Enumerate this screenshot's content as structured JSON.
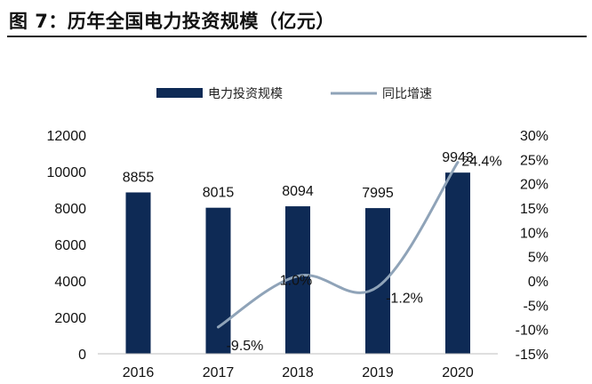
{
  "figure": {
    "title": "图 7：历年全国电力投资规模（亿元）"
  },
  "chart_data": {
    "type": "bar",
    "categories": [
      "2016",
      "2017",
      "2018",
      "2019",
      "2020"
    ],
    "series": [
      {
        "name": "电力投资规模",
        "type": "bar",
        "axis": "left",
        "color": "#0e2a55",
        "values": [
          8855,
          8015,
          8094,
          7995,
          9943
        ],
        "labels": [
          "8855",
          "8015",
          "8094",
          "7995",
          "9943"
        ]
      },
      {
        "name": "同比增速",
        "type": "line",
        "axis": "right",
        "color": "#8fa3b8",
        "values": [
          null,
          -9.5,
          1.0,
          -1.2,
          24.4
        ],
        "labels": [
          "",
          "-9.5%",
          "1.0%",
          "-1.2%",
          "24.4%"
        ]
      }
    ],
    "y_left": {
      "min": 0,
      "max": 12000,
      "ticks": [
        "0",
        "2000",
        "4000",
        "6000",
        "8000",
        "10000",
        "12000"
      ]
    },
    "y_right": {
      "min": -15,
      "max": 30,
      "ticks": [
        "-15%",
        "-10%",
        "-5%",
        "0%",
        "5%",
        "10%",
        "15%",
        "20%",
        "25%",
        "30%"
      ]
    },
    "legend_position": "top-center",
    "grid": false
  }
}
